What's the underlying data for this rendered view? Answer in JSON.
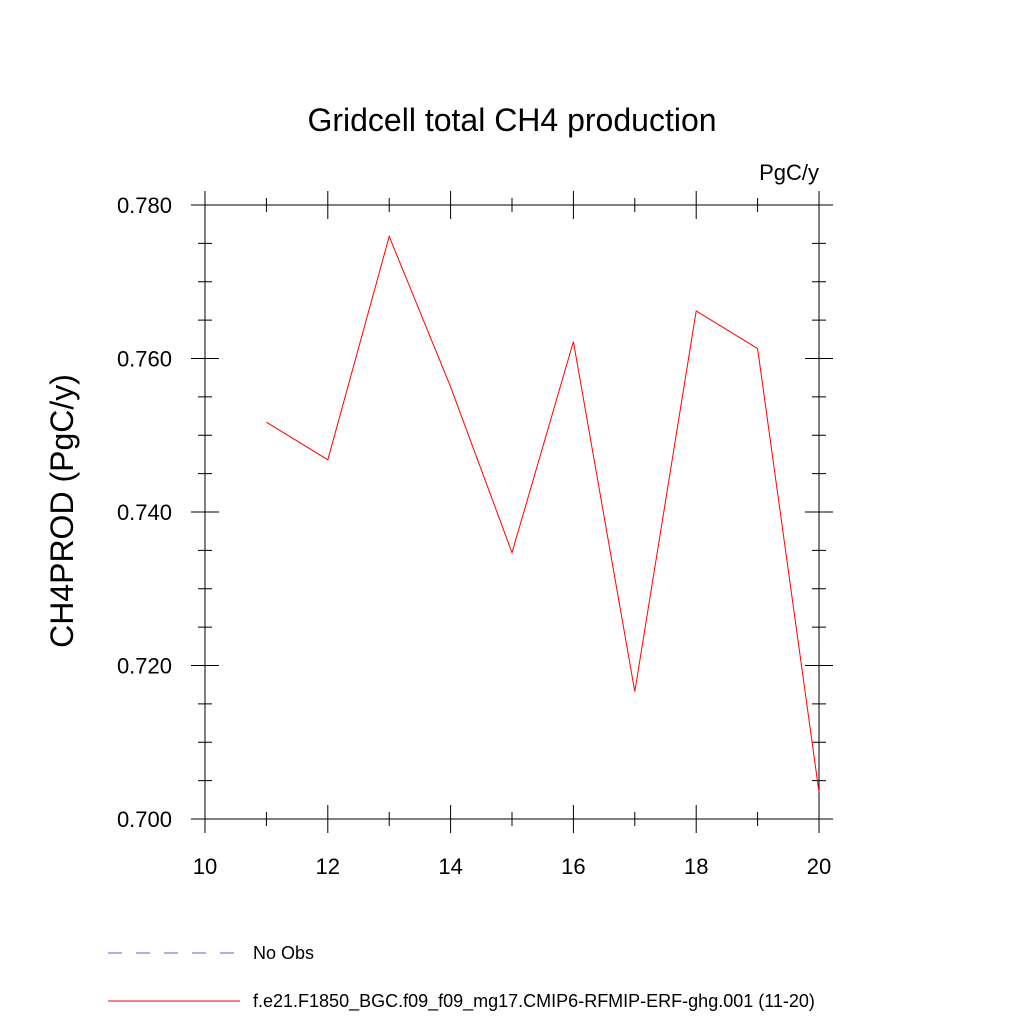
{
  "chart_data": {
    "type": "line",
    "title": "Gridcell total CH4 production",
    "units_label": "PgC/y",
    "ylabel": "CH4PROD  (PgC/y)",
    "xlabel": "",
    "xlim": [
      10,
      20
    ],
    "ylim": [
      0.7,
      0.78
    ],
    "x_ticks": [
      10,
      12,
      14,
      16,
      18,
      20
    ],
    "x_tick_labels": [
      "10",
      "12",
      "14",
      "16",
      "18",
      "20"
    ],
    "y_ticks": [
      0.7,
      0.72,
      0.74,
      0.76,
      0.78
    ],
    "y_tick_labels": [
      "0.700",
      "0.720",
      "0.740",
      "0.760",
      "0.780"
    ],
    "x_minor_step": 1,
    "y_minor_step": 0.005,
    "grid": false,
    "legend_position": "bottom",
    "series": [
      {
        "name": "f.e21.F1850_BGC.f09_f09_mg17.CMIP6-RFMIP-ERF-ghg.001 (11-20)",
        "color": "#ff0000",
        "style": "solid",
        "x": [
          11,
          12,
          13,
          14,
          15,
          16,
          17,
          18,
          19,
          20
        ],
        "y": [
          0.7517,
          0.7468,
          0.7759,
          0.7563,
          0.7347,
          0.7622,
          0.7166,
          0.7662,
          0.7613,
          0.7035
        ]
      }
    ],
    "legend": [
      {
        "label": "No Obs",
        "color": "#6a5acd",
        "style": "dashed"
      },
      {
        "label": "f.e21.F1850_BGC.f09_f09_mg17.CMIP6-RFMIP-ERF-ghg.001 (11-20)",
        "color": "#ff0000",
        "style": "solid"
      }
    ]
  }
}
